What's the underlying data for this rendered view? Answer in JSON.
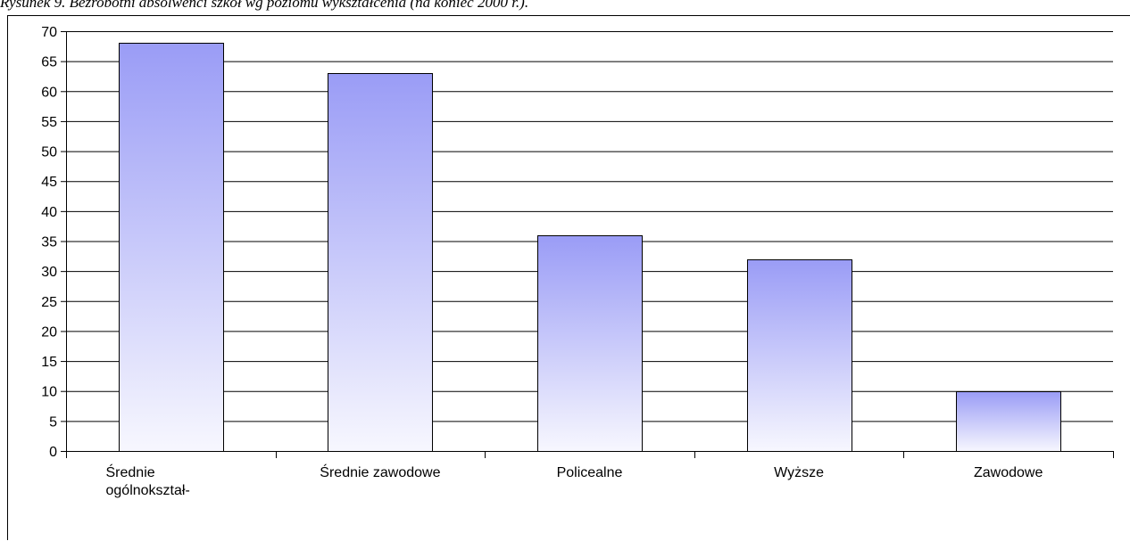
{
  "caption": "Rysunek 9. Bezrobotni absolwenci szkół wg poziomu wykształcenia (na koniec 2000 r.).",
  "chart_data": {
    "type": "bar",
    "title": "",
    "xlabel": "",
    "ylabel": "",
    "categories": [
      [
        "Średnie",
        "ogólnokształ-"
      ],
      [
        "Średnie zawodowe"
      ],
      [
        "Policealne"
      ],
      [
        "Wyższe"
      ],
      [
        "Zawodowe"
      ]
    ],
    "values": [
      68,
      63,
      36,
      32,
      10
    ],
    "ylim": [
      0,
      70
    ],
    "ytick_step": 5,
    "grid": true,
    "legend": "none",
    "bar_color_top": "#9a9cf6",
    "bar_color_bottom": "#f7f7fe"
  }
}
